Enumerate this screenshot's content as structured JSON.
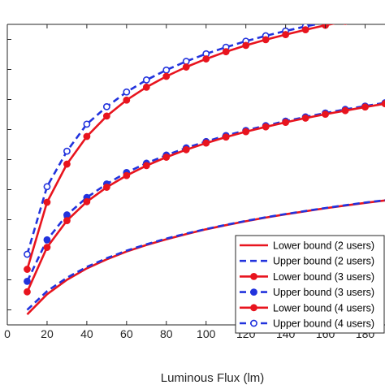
{
  "chart_data": {
    "type": "line",
    "title": "",
    "xlabel": "Luminous Flux (lm)",
    "ylabel": "",
    "xlim": [
      0,
      190
    ],
    "ylim": [
      0,
      1
    ],
    "x_ticks": [
      0,
      20,
      40,
      60,
      80,
      100,
      120,
      140,
      160,
      180
    ],
    "x_tick_labels": [
      "0",
      "20",
      "40",
      "60",
      "80",
      "100",
      "120",
      "140",
      "160",
      "180"
    ],
    "y_ticks": [
      0.05,
      0.15,
      0.25,
      0.35,
      0.45,
      0.55,
      0.65,
      0.75,
      0.85,
      0.95
    ],
    "grid": false,
    "legend_position": "bottom-right",
    "colors": {
      "red": "#e8141e",
      "blue": "#2233dd",
      "axis": "#262626"
    },
    "series": [
      {
        "name": "Lower bound (2 users)",
        "color": "#e8141e",
        "style": "solid",
        "marker": "none",
        "x": [
          10,
          20,
          30,
          40,
          50,
          60,
          70,
          80,
          90,
          100,
          110,
          120,
          130,
          140,
          150,
          160,
          170,
          180,
          190
        ],
        "y": [
          0.035,
          0.102,
          0.15,
          0.188,
          0.218,
          0.244,
          0.266,
          0.285,
          0.302,
          0.318,
          0.332,
          0.345,
          0.357,
          0.368,
          0.378,
          0.388,
          0.397,
          0.406,
          0.414
        ]
      },
      {
        "name": "Upper bound (2 users)",
        "color": "#2233dd",
        "style": "dashed",
        "marker": "none",
        "x": [
          10,
          20,
          30,
          40,
          50,
          60,
          70,
          80,
          90,
          100,
          110,
          120,
          130,
          140,
          150,
          160,
          170,
          180,
          190
        ],
        "y": [
          0.05,
          0.112,
          0.157,
          0.193,
          0.222,
          0.247,
          0.268,
          0.287,
          0.304,
          0.319,
          0.333,
          0.346,
          0.358,
          0.369,
          0.379,
          0.389,
          0.398,
          0.407,
          0.415
        ]
      },
      {
        "name": "Upper bound (3 users)",
        "color": "#2233dd",
        "style": "dashed",
        "marker": "filled-circle",
        "x": [
          10,
          20,
          30,
          40,
          50,
          60,
          70,
          80,
          90,
          100,
          110,
          120,
          130,
          140,
          150,
          160,
          170,
          180,
          190
        ],
        "y": [
          0.145,
          0.283,
          0.366,
          0.424,
          0.469,
          0.507,
          0.538,
          0.565,
          0.589,
          0.61,
          0.63,
          0.647,
          0.663,
          0.678,
          0.692,
          0.705,
          0.717,
          0.728,
          0.739
        ]
      },
      {
        "name": "Lower bound (3 users)",
        "color": "#e8141e",
        "style": "solid",
        "marker": "filled-circle",
        "x": [
          10,
          20,
          30,
          40,
          50,
          60,
          70,
          80,
          90,
          100,
          110,
          120,
          130,
          140,
          150,
          160,
          170,
          180,
          190
        ],
        "y": [
          0.11,
          0.258,
          0.347,
          0.41,
          0.458,
          0.497,
          0.53,
          0.558,
          0.583,
          0.605,
          0.625,
          0.643,
          0.659,
          0.674,
          0.688,
          0.701,
          0.713,
          0.725,
          0.736
        ]
      },
      {
        "name": "Upper bound (4 users)",
        "color": "#2233dd",
        "style": "dashed",
        "marker": "open-circle",
        "x": [
          10,
          20,
          30,
          40,
          50,
          60,
          70,
          80,
          90,
          100,
          110,
          120,
          130,
          140,
          150,
          160,
          170,
          180,
          190
        ],
        "y": [
          0.235,
          0.46,
          0.578,
          0.668,
          0.726,
          0.775,
          0.815,
          0.848,
          0.877,
          0.902,
          0.924,
          0.944,
          0.962,
          0.978,
          0.993,
          1.007,
          1.02,
          1.032,
          1.043
        ]
      },
      {
        "name": "Lower bound (4 users)",
        "color": "#e8141e",
        "style": "solid",
        "marker": "filled-circle",
        "x": [
          10,
          20,
          30,
          40,
          50,
          60,
          70,
          80,
          90,
          100,
          110,
          120,
          130,
          140,
          150,
          160,
          170,
          180,
          190
        ],
        "y": [
          0.185,
          0.408,
          0.535,
          0.627,
          0.695,
          0.748,
          0.791,
          0.827,
          0.858,
          0.885,
          0.909,
          0.93,
          0.949,
          0.966,
          0.982,
          0.997,
          1.01,
          1.023,
          1.035
        ]
      }
    ],
    "legend_order": [
      "Lower bound (2 users)",
      "Upper bound (2 users)",
      "Upper bound (3 users)",
      "Lower bound (3 users)",
      "Upper bound (4 users)",
      "Lower bound (4 users)"
    ],
    "legend_labels": [
      "Lower bound (2 users)",
      "Upper bound (2 users)",
      "Lower bound (3 users)",
      "Upper bound (3 users)",
      "Lower bound (4 users)",
      "Upper bound (4 users)"
    ],
    "legend_series_index": [
      0,
      1,
      3,
      2,
      5,
      4
    ]
  }
}
